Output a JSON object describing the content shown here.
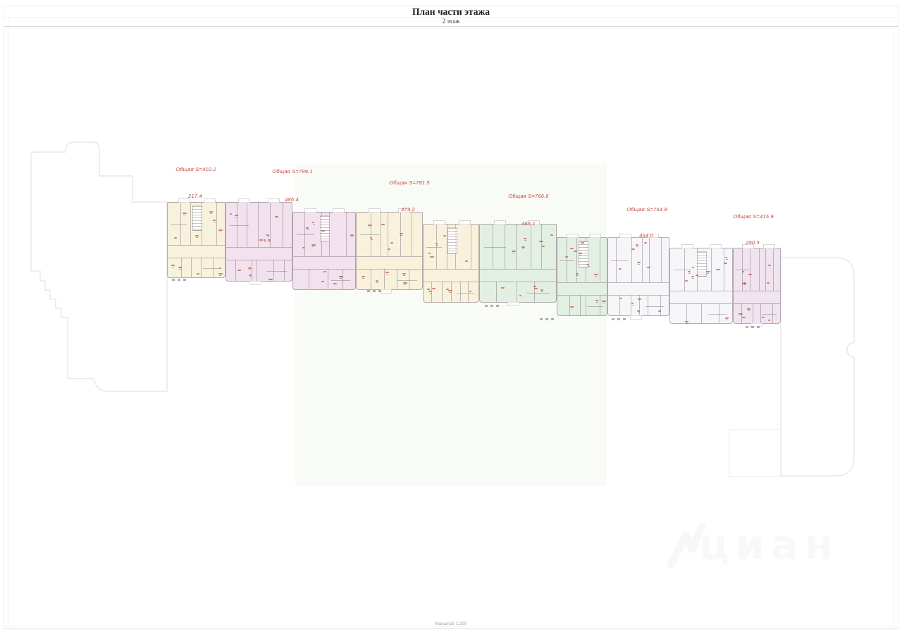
{
  "title": "План части этажа",
  "subtitle": "2 этаж",
  "scale_note": "Масштаб 1:200",
  "watermark_text": "циан",
  "colors": {
    "label_red": "#c4473f",
    "section_cream": "#f8f2dd",
    "section_pink": "#f2e2ee",
    "section_green": "#e3efe2",
    "section_pale": "#f6f6f9",
    "section_lavender": "#f0e4ef",
    "outline_gray": "#e3e3e3",
    "wall_gray": "#7d6c80"
  },
  "area_labels": [
    {
      "total": "Общая S=410.2",
      "part": "217.4"
    },
    {
      "total": "Общая S=799.1",
      "part": "486.4"
    },
    {
      "total": "Общая S=781.5",
      "part": "473.2"
    },
    {
      "total": "Общая S=766.6",
      "part": "466.1"
    },
    {
      "total": "Общая S=764.8",
      "part": "464.0"
    },
    {
      "total": "Общая S=415.9",
      "part": "290.5"
    }
  ]
}
